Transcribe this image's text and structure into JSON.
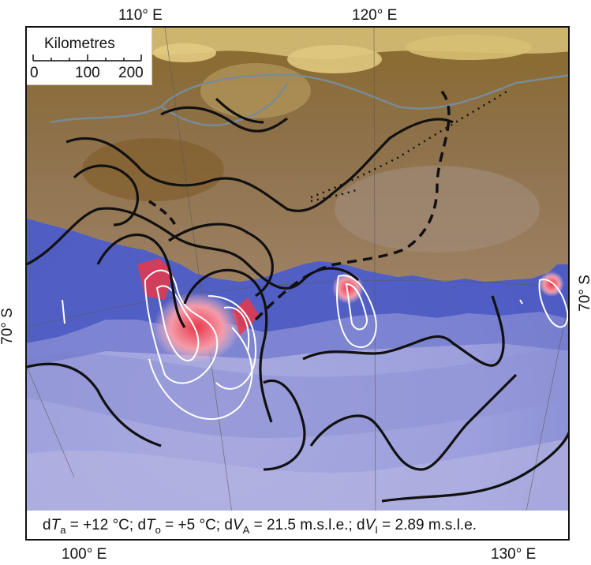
{
  "axes": {
    "top_lon": [
      "110° E",
      "120° E"
    ],
    "bottom_lon": [
      "100° E",
      "130° E"
    ],
    "lat_left": "70° S",
    "lat_right": "70° S"
  },
  "scale_bar": {
    "title": "Kilometres",
    "ticks": [
      "0",
      "100",
      "200"
    ]
  },
  "caption": {
    "d1": "d",
    "t1": "T",
    "s1": "a",
    "v1": " = +12 °C; ",
    "d2": "d",
    "t2": "T",
    "s2": "o",
    "v2": " = +5 °C; ",
    "d3": "d",
    "t3": "V",
    "s3": "A",
    "v3": " = 21.5 m.s.l.e.; ",
    "d4": "d",
    "t4": "V",
    "s4": "I",
    "v4": " = 2.89 m.s.l.e."
  },
  "colors": {
    "land_dark": "#7a5520",
    "land_mid": "#9a7a4e",
    "land_light": "#b4985c",
    "land_high": "#d9c27a",
    "ice_edge": "#4352bf",
    "ocean_1": "#6d76cc",
    "ocean_2": "#8f93d6",
    "ocean_3": "#b3b3e0",
    "melt": "#e8384a",
    "contour_black": "#111111",
    "contour_white": "#ffffff",
    "coast": "#7a8a96"
  }
}
